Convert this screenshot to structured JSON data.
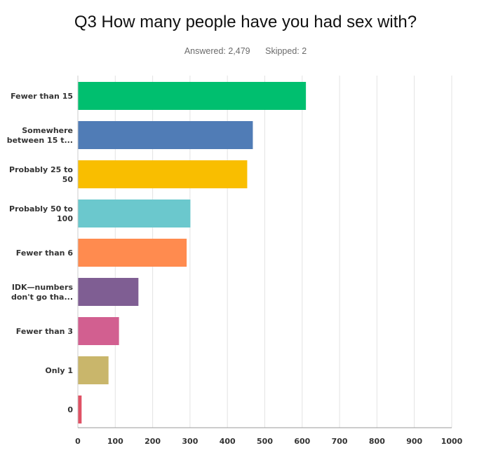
{
  "header": {
    "title": "Q3 How many people have you had sex with?",
    "answered": "Answered: 2,479",
    "skipped": "Skipped: 2"
  },
  "chart_data": {
    "type": "bar",
    "orientation": "horizontal",
    "title": "Q3 How many people have you had sex with?",
    "xlabel": "",
    "ylabel": "",
    "xlim": [
      0,
      1000
    ],
    "xticks": [
      0,
      100,
      200,
      300,
      400,
      500,
      600,
      700,
      800,
      900,
      1000
    ],
    "grid": true,
    "categories": [
      [
        "Fewer than 15"
      ],
      [
        "Somewhere",
        "between 15 t..."
      ],
      [
        "Probably 25 to",
        "50"
      ],
      [
        "Probably 50 to",
        "100"
      ],
      [
        "Fewer than 6"
      ],
      [
        "IDK—numbers",
        "don't go tha..."
      ],
      [
        "Fewer than 3"
      ],
      [
        "Only 1"
      ],
      [
        "0"
      ]
    ],
    "values": [
      610,
      468,
      453,
      301,
      291,
      162,
      110,
      82,
      10
    ],
    "colors": [
      "#00bf6f",
      "#507cb6",
      "#f9be00",
      "#6bc8cd",
      "#ff8b4f",
      "#7f5e93",
      "#d25f90",
      "#c9b66b",
      "#e05164"
    ]
  }
}
